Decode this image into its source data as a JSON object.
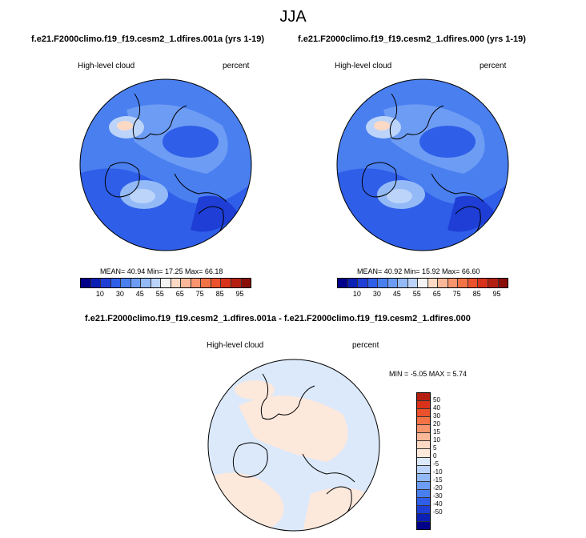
{
  "title": "JJA",
  "left_panel": {
    "subtitle": "f.e21.F2000climo.f19_f19.cesm2_1.dfires.001a (yrs 1-19)",
    "variable": "High-level cloud",
    "units": "percent",
    "stats": "MEAN=  40.94  Min=  17.25  Max=  66.18"
  },
  "right_panel": {
    "subtitle": "f.e21.F2000climo.f19_f19.cesm2_1.dfires.000 (yrs 1-19)",
    "variable": "High-level cloud",
    "units": "percent",
    "stats": "MEAN=  40.92  Min=  15.92  Max=  66.60"
  },
  "diff_panel": {
    "subtitle": "f.e21.F2000climo.f19_f19.cesm2_1.dfires.001a - f.e21.F2000climo.f19_f19.cesm2_1.dfires.000",
    "variable": "High-level cloud",
    "units": "percent",
    "stats": "MIN =  -5.05 MAX =   5.74"
  },
  "colorbar_top": {
    "colors": [
      "#00008b",
      "#0a1fb4",
      "#1e3ed6",
      "#2f5ee8",
      "#4a7ff0",
      "#6d9cf4",
      "#93baf7",
      "#bcd4fa",
      "#f3f3f3",
      "#fcd9c4",
      "#fbb899",
      "#f8956e",
      "#f37346",
      "#eb512a",
      "#d9321a",
      "#b51f12",
      "#8a0e08"
    ],
    "ticks": [
      "10",
      "30",
      "45",
      "55",
      "65",
      "75",
      "85",
      "95"
    ]
  },
  "colorbar_diff": {
    "colors": [
      "#b51f12",
      "#d9321a",
      "#eb512a",
      "#f37346",
      "#f8956e",
      "#fbb899",
      "#fcd9c4",
      "#fde8dc",
      "#dbe9fb",
      "#bcd4fa",
      "#93baf7",
      "#6d9cf4",
      "#4a7ff0",
      "#2f5ee8",
      "#1e3ed6",
      "#0a1fb4",
      "#00008b"
    ],
    "ticks": [
      "50",
      "40",
      "30",
      "20",
      "15",
      "10",
      "5",
      "0",
      "-5",
      "-10",
      "-15",
      "-20",
      "-30",
      "-40",
      "-50"
    ]
  }
}
